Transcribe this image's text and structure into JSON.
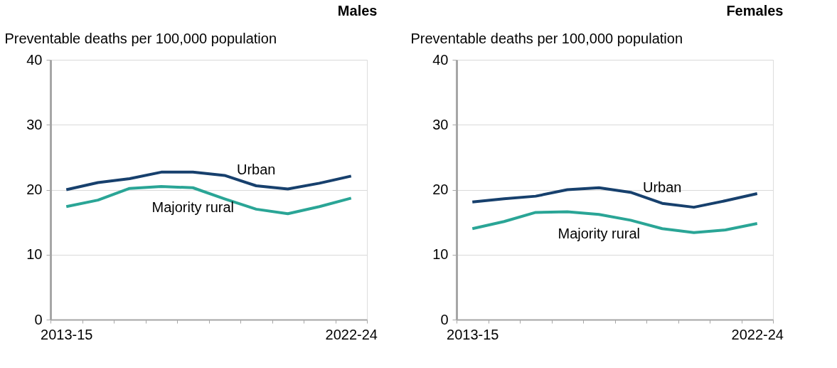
{
  "chart_data": [
    {
      "type": "line",
      "title": "Males",
      "ylabel": "Preventable deaths per 100,000 population",
      "categories": [
        "2013-15",
        null,
        null,
        null,
        null,
        null,
        null,
        null,
        null,
        "2022-24"
      ],
      "ylim": [
        0,
        40
      ],
      "yticks": [
        0,
        10,
        20,
        30,
        40
      ],
      "grid": "y",
      "legend": false,
      "marker": "none",
      "line_style": "solid",
      "series": [
        {
          "name": "Urban",
          "color": "#17406d",
          "values": [
            20.0,
            21.1,
            21.7,
            22.7,
            22.7,
            22.2,
            20.6,
            20.1,
            21.0,
            22.1
          ]
        },
        {
          "name": "Majority rural",
          "color": "#2aa596",
          "values": [
            17.4,
            18.4,
            20.2,
            20.5,
            20.3,
            18.6,
            17.0,
            16.3,
            17.4,
            18.7
          ]
        }
      ]
    },
    {
      "type": "line",
      "title": "Females",
      "ylabel": "Preventable deaths per 100,000 population",
      "categories": [
        "2013-15",
        null,
        null,
        null,
        null,
        null,
        null,
        null,
        null,
        "2022-24"
      ],
      "ylim": [
        0,
        40
      ],
      "yticks": [
        0,
        10,
        20,
        30,
        40
      ],
      "grid": "y",
      "legend": false,
      "marker": "none",
      "line_style": "solid",
      "series": [
        {
          "name": "Urban",
          "color": "#17406d",
          "values": [
            18.1,
            18.6,
            19.0,
            20.0,
            20.3,
            19.6,
            17.9,
            17.3,
            18.3,
            19.4
          ]
        },
        {
          "name": "Majority rural",
          "color": "#2aa596",
          "values": [
            14.0,
            15.1,
            16.5,
            16.6,
            16.2,
            15.3,
            14.0,
            13.4,
            13.8,
            14.8
          ]
        }
      ]
    }
  ]
}
